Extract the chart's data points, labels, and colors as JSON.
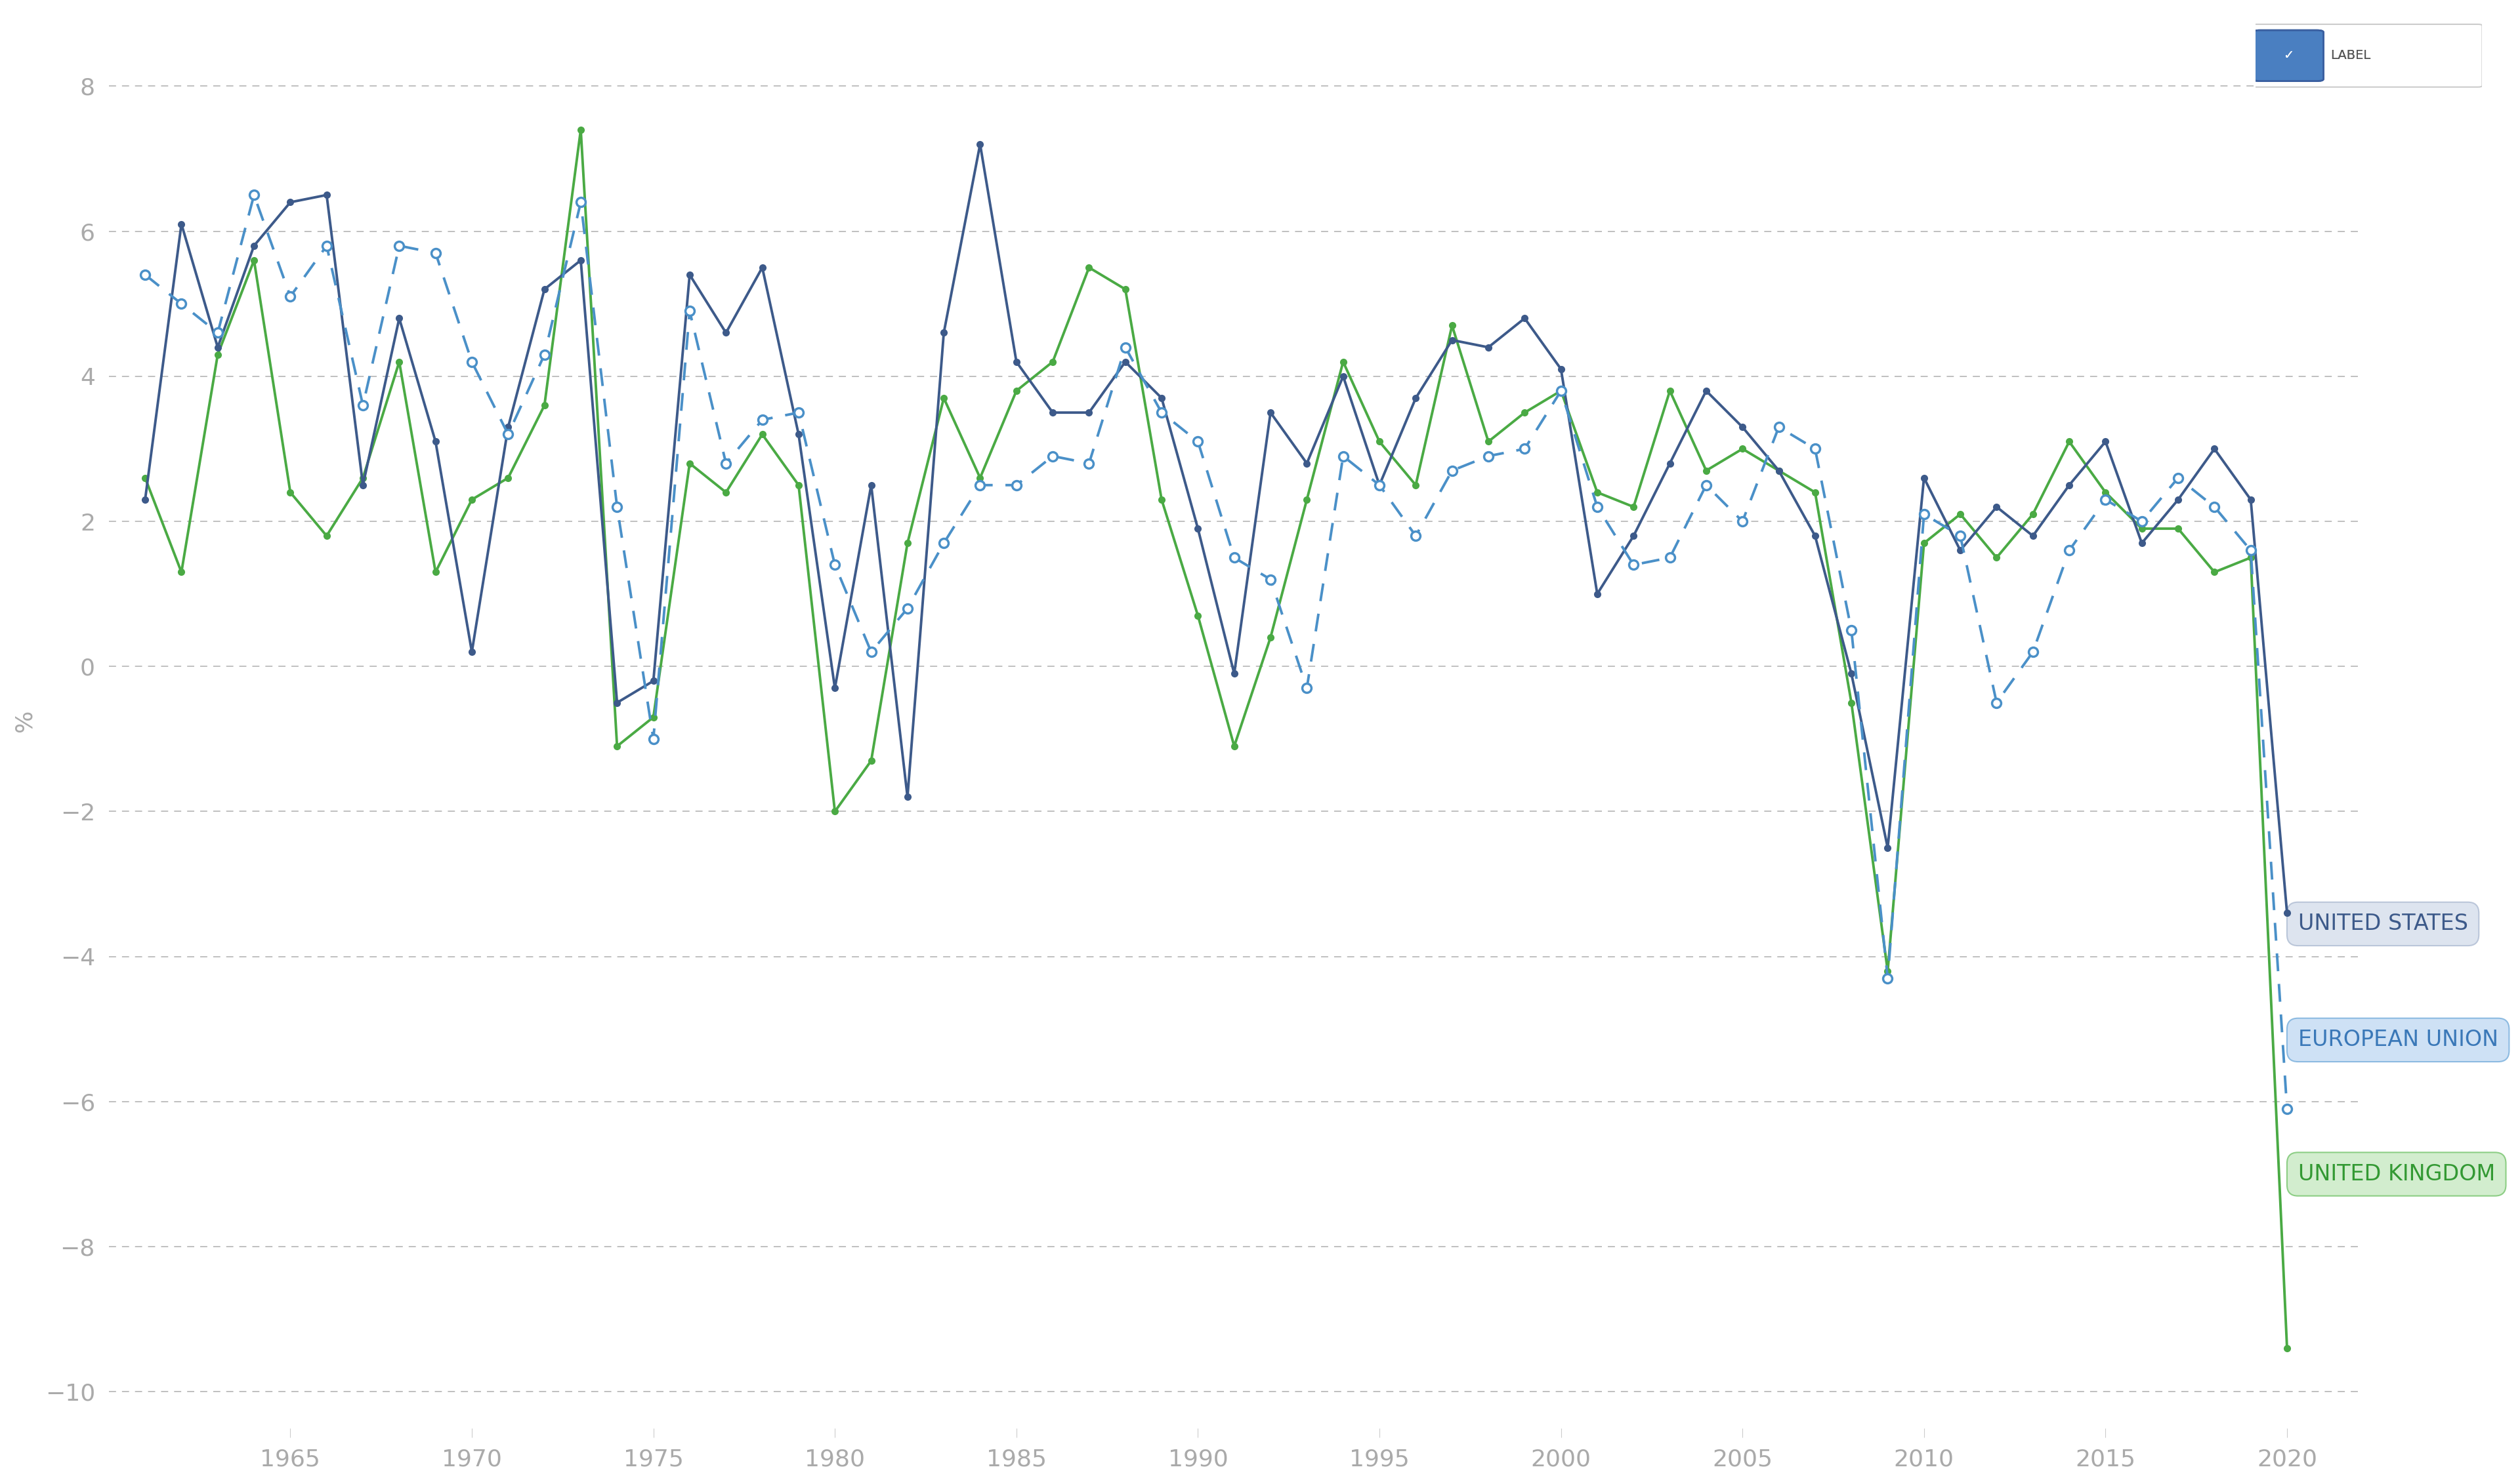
{
  "years": [
    1961,
    1962,
    1963,
    1964,
    1965,
    1966,
    1967,
    1968,
    1969,
    1970,
    1971,
    1972,
    1973,
    1974,
    1975,
    1976,
    1977,
    1978,
    1979,
    1980,
    1981,
    1982,
    1983,
    1984,
    1985,
    1986,
    1987,
    1988,
    1989,
    1990,
    1991,
    1992,
    1993,
    1994,
    1995,
    1996,
    1997,
    1998,
    1999,
    2000,
    2001,
    2002,
    2003,
    2004,
    2005,
    2006,
    2007,
    2008,
    2009,
    2010,
    2011,
    2012,
    2013,
    2014,
    2015,
    2016,
    2017,
    2018,
    2019,
    2020
  ],
  "us": [
    2.3,
    6.1,
    4.4,
    5.8,
    6.4,
    6.5,
    2.5,
    4.8,
    3.1,
    0.2,
    3.3,
    5.2,
    5.6,
    -0.5,
    -0.2,
    5.4,
    4.6,
    5.5,
    3.2,
    -0.3,
    2.5,
    -1.8,
    4.6,
    7.2,
    4.2,
    3.5,
    3.5,
    4.2,
    3.7,
    1.9,
    -0.1,
    3.5,
    2.8,
    4.0,
    2.5,
    3.7,
    4.5,
    4.4,
    4.8,
    4.1,
    1.0,
    1.8,
    2.8,
    3.8,
    3.3,
    2.7,
    1.8,
    -0.1,
    -2.5,
    2.6,
    1.6,
    2.2,
    1.8,
    2.5,
    3.1,
    1.7,
    2.3,
    3.0,
    2.3,
    -3.4
  ],
  "eu": [
    5.4,
    5.0,
    4.6,
    6.5,
    5.1,
    5.8,
    3.6,
    5.8,
    5.7,
    4.2,
    3.2,
    4.3,
    6.4,
    2.2,
    -1.0,
    4.9,
    2.8,
    3.4,
    3.5,
    1.4,
    0.2,
    0.8,
    1.7,
    2.5,
    2.5,
    2.9,
    2.8,
    4.4,
    3.5,
    3.1,
    1.5,
    1.2,
    -0.3,
    2.9,
    2.5,
    1.8,
    2.7,
    2.9,
    3.0,
    3.8,
    2.2,
    1.4,
    1.5,
    2.5,
    2.0,
    3.3,
    3.0,
    0.5,
    -4.3,
    2.1,
    1.8,
    -0.5,
    0.2,
    1.6,
    2.3,
    2.0,
    2.6,
    2.2,
    1.6,
    -6.1
  ],
  "uk": [
    2.6,
    1.3,
    4.3,
    5.6,
    2.4,
    1.8,
    2.6,
    4.2,
    1.3,
    2.3,
    2.6,
    3.6,
    7.4,
    -1.1,
    -0.7,
    2.8,
    2.4,
    3.2,
    2.5,
    -2.0,
    -1.3,
    1.7,
    3.7,
    2.6,
    3.8,
    4.2,
    5.5,
    5.2,
    2.3,
    0.7,
    -1.1,
    0.4,
    2.3,
    4.2,
    3.1,
    2.5,
    4.7,
    3.1,
    3.5,
    3.8,
    2.4,
    2.2,
    3.8,
    2.7,
    3.0,
    2.7,
    2.4,
    -0.5,
    -4.2,
    1.7,
    2.1,
    1.5,
    2.1,
    3.1,
    2.4,
    1.9,
    1.9,
    1.3,
    1.5,
    -9.4
  ],
  "us_color": "#3d5a8a",
  "eu_color": "#4a90c8",
  "uk_color": "#4aaa44",
  "bg_color": "#ffffff",
  "grid_color": "#bbbbbb",
  "ylabel": "%",
  "ylim_min": -10.5,
  "ylim_max": 9.0,
  "yticks": [
    -10,
    -8,
    -6,
    -4,
    -2,
    0,
    2,
    4,
    6,
    8
  ],
  "xtick_positions": [
    1965,
    1970,
    1975,
    1980,
    1985,
    1990,
    1995,
    2000,
    2005,
    2010,
    2015,
    2020
  ],
  "legend_label": "LABEL",
  "us_label": "UNITED STATES",
  "eu_label": "EUROPEAN UNION",
  "uk_label": "UNITED KINGDOM",
  "tick_color": "#aaaaaa",
  "tick_fontsize": 26,
  "ylabel_fontsize": 26,
  "annot_fontsize": 24,
  "line_width": 2.8,
  "marker_size": 8
}
